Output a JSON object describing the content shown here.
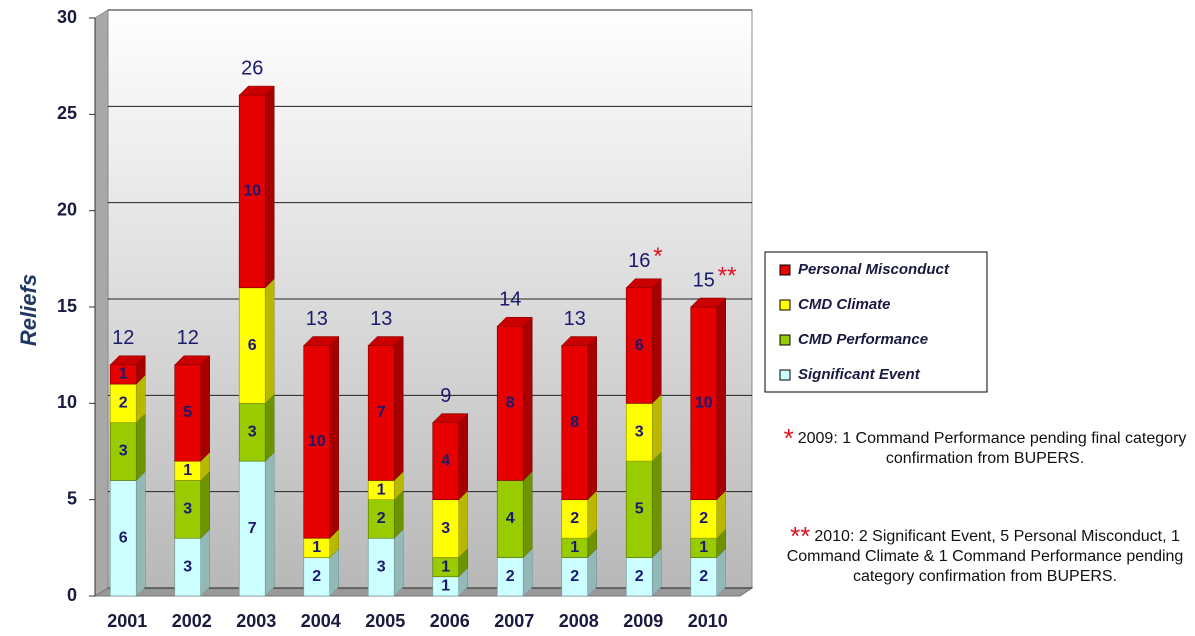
{
  "chart_data": {
    "type": "bar",
    "stacked": true,
    "ylabel": "Reliefs",
    "categories": [
      "2001",
      "2002",
      "2003",
      "2004",
      "2005",
      "2006",
      "2007",
      "2008",
      "2009",
      "2010"
    ],
    "series": [
      {
        "name": "Significant Event",
        "color": "#ccffff",
        "values": [
          6,
          3,
          7,
          2,
          3,
          1,
          2,
          2,
          2,
          2
        ]
      },
      {
        "name": "CMD Performance",
        "color": "#99cc00",
        "values": [
          3,
          3,
          3,
          0,
          2,
          1,
          4,
          1,
          5,
          1
        ]
      },
      {
        "name": "CMD Climate",
        "color": "#ffff00",
        "values": [
          2,
          1,
          6,
          1,
          1,
          3,
          0,
          2,
          3,
          2
        ]
      },
      {
        "name": "Personal Misconduct",
        "color": "#e60000",
        "values": [
          1,
          5,
          10,
          10,
          7,
          4,
          8,
          8,
          6,
          10
        ]
      }
    ],
    "totals": [
      12,
      12,
      26,
      13,
      13,
      9,
      14,
      13,
      16,
      15
    ],
    "total_notes": [
      null,
      null,
      null,
      null,
      null,
      null,
      null,
      null,
      "*",
      "**"
    ],
    "ylim": [
      0,
      30
    ],
    "yticks": [
      0,
      5,
      10,
      15,
      20,
      25,
      30
    ],
    "grid": true,
    "notes": [
      {
        "marker": "*",
        "text": "2009: 1 Command Performance pending final category confirmation from BUPERS."
      },
      {
        "marker": "**",
        "text": "2010: 2 Significant Event, 5 Personal Misconduct, 1 Command Climate & 1 Command Performance pending category confirmation from BUPERS."
      }
    ]
  }
}
